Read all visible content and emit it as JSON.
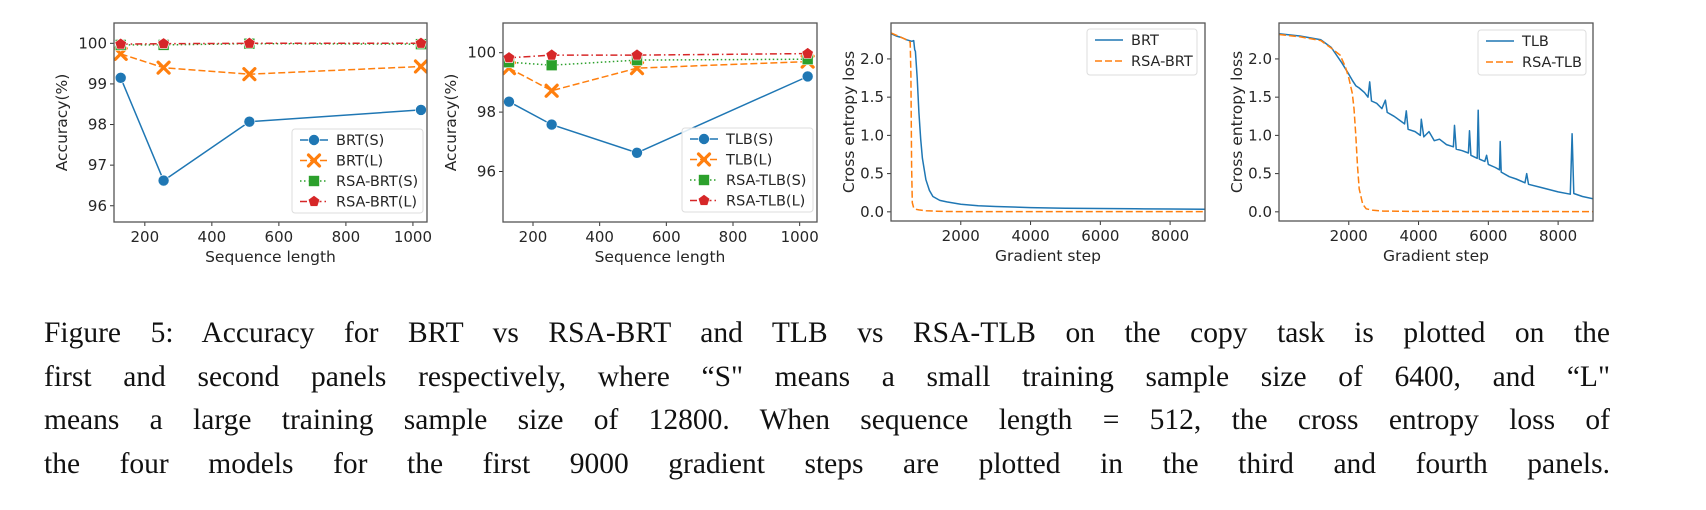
{
  "figure": {
    "caption_lines": [
      "Figure 5: Accuracy for BRT vs RSA-BRT and TLB vs RSA-TLB on the copy task is plotted on the",
      "first and second panels respectively, where “S\" means a small training sample size of 6400, and “L\"",
      "means a large training sample size of 12800. When sequence length = 512, the cross entropy loss of",
      "the four models for the first 9000 gradient steps are plotted in the third and fourth panels."
    ]
  },
  "colors": {
    "blue": "#1f77b4",
    "orange": "#ff7f0e",
    "green": "#2ca02c",
    "red": "#d62728"
  },
  "chart_data": [
    {
      "type": "line",
      "xlabel": "Sequence length",
      "ylabel": "Accuracy(%)",
      "x": [
        128,
        256,
        512,
        1024
      ],
      "xlim": [
        108,
        1042
      ],
      "ylim": [
        95.6,
        100.5
      ],
      "xticks": [
        200,
        400,
        600,
        800,
        1000
      ],
      "yticks": [
        96,
        97,
        98,
        99,
        100
      ],
      "grid": false,
      "legend": "lower-right",
      "series": [
        {
          "name": "BRT(S)",
          "color": "#1f77b4",
          "linestyle": "solid",
          "marker": "circle",
          "values": [
            99.15,
            96.62,
            98.07,
            98.36
          ]
        },
        {
          "name": "BRT(L)",
          "color": "#ff7f0e",
          "linestyle": "dashed",
          "marker": "x",
          "values": [
            99.74,
            99.4,
            99.24,
            99.43
          ]
        },
        {
          "name": "RSA-BRT(S)",
          "color": "#2ca02c",
          "linestyle": "dotted",
          "marker": "square",
          "values": [
            99.96,
            99.96,
            99.99,
            99.98
          ]
        },
        {
          "name": "RSA-BRT(L)",
          "color": "#d62728",
          "linestyle": "dashdot",
          "marker": "pentagon",
          "values": [
            99.98,
            99.99,
            100.0,
            100.0
          ]
        }
      ]
    },
    {
      "type": "line",
      "xlabel": "Sequence length",
      "ylabel": "Accuracy(%)",
      "x": [
        128,
        256,
        512,
        1024
      ],
      "xlim": [
        110,
        1052
      ],
      "ylim": [
        94.3,
        101.0
      ],
      "xticks": [
        200,
        400,
        600,
        800,
        1000
      ],
      "yticks": [
        96,
        98,
        100
      ],
      "grid": false,
      "legend": "lower-right",
      "series": [
        {
          "name": "TLB(S)",
          "color": "#1f77b4",
          "linestyle": "solid",
          "marker": "circle",
          "values": [
            98.35,
            97.58,
            96.63,
            99.2
          ]
        },
        {
          "name": "TLB(L)",
          "color": "#ff7f0e",
          "linestyle": "dashed",
          "marker": "x",
          "values": [
            99.48,
            98.72,
            99.48,
            99.7
          ]
        },
        {
          "name": "RSA-TLB(S)",
          "color": "#2ca02c",
          "linestyle": "dotted",
          "marker": "square",
          "values": [
            99.68,
            99.58,
            99.75,
            99.78
          ]
        },
        {
          "name": "RSA-TLB(L)",
          "color": "#d62728",
          "linestyle": "dashdot",
          "marker": "pentagon",
          "values": [
            99.83,
            99.92,
            99.92,
            99.97
          ]
        }
      ]
    },
    {
      "type": "line",
      "xlabel": "Gradient step",
      "ylabel": "Cross entropy loss",
      "xlim": [
        0,
        9000
      ],
      "ylim": [
        -0.12,
        2.47
      ],
      "xticks": [
        2000,
        4000,
        6000,
        8000
      ],
      "yticks": [
        0.0,
        0.5,
        1.0,
        1.5,
        2.0
      ],
      "grid": false,
      "legend": "upper-right",
      "series": [
        {
          "name": "BRT",
          "color": "#1f77b4",
          "linestyle": "solid",
          "x": [
            0,
            150,
            300,
            450,
            600,
            650,
            680,
            700,
            750,
            800,
            850,
            900,
            1000,
            1100,
            1200,
            1400,
            1600,
            2000,
            2500,
            3000,
            4000,
            5000,
            6000,
            7000,
            8000,
            9000
          ],
          "values": [
            2.33,
            2.3,
            2.28,
            2.25,
            2.23,
            2.24,
            2.12,
            2.1,
            1.75,
            1.3,
            0.95,
            0.7,
            0.42,
            0.28,
            0.2,
            0.15,
            0.13,
            0.1,
            0.08,
            0.07,
            0.055,
            0.048,
            0.043,
            0.04,
            0.037,
            0.035
          ]
        },
        {
          "name": "RSA-BRT",
          "color": "#ff7f0e",
          "linestyle": "dashed",
          "x": [
            0,
            200,
            400,
            550,
            570,
            590,
            610,
            650,
            700,
            800,
            1000,
            1300,
            1600,
            2000,
            9000
          ],
          "values": [
            2.34,
            2.3,
            2.26,
            2.22,
            1.8,
            0.6,
            0.12,
            0.05,
            0.035,
            0.025,
            0.015,
            0.008,
            0.004,
            0.003,
            0.003
          ]
        }
      ]
    },
    {
      "type": "line",
      "xlabel": "Gradient step",
      "ylabel": "Cross entropy loss",
      "xlim": [
        0,
        9000
      ],
      "ylim": [
        -0.12,
        2.47
      ],
      "xticks": [
        2000,
        4000,
        6000,
        8000
      ],
      "yticks": [
        0.0,
        0.5,
        1.0,
        1.5,
        2.0
      ],
      "grid": false,
      "legend": "upper-right",
      "series": [
        {
          "name": "TLB",
          "color": "#1f77b4",
          "linestyle": "solid",
          "x": [
            0,
            600,
            1200,
            1500,
            1800,
            2000,
            2100,
            2200,
            2300,
            2450,
            2550,
            2600,
            2650,
            2800,
            2950,
            3050,
            3100,
            3300,
            3450,
            3600,
            3650,
            3700,
            3900,
            4050,
            4080,
            4150,
            4300,
            4450,
            4600,
            4800,
            5000,
            5030,
            5080,
            5250,
            5430,
            5460,
            5500,
            5680,
            5710,
            5740,
            5900,
            5950,
            6000,
            6200,
            6320,
            6340,
            6370,
            6600,
            6800,
            7050,
            7100,
            7150,
            7500,
            8000,
            8350,
            8400,
            8450,
            8700,
            9000
          ],
          "values": [
            2.33,
            2.3,
            2.25,
            2.15,
            1.95,
            1.8,
            1.72,
            1.65,
            1.62,
            1.56,
            1.5,
            1.7,
            1.45,
            1.42,
            1.35,
            1.46,
            1.3,
            1.25,
            1.2,
            1.15,
            1.32,
            1.08,
            1.05,
            1.0,
            1.21,
            0.98,
            1.05,
            0.93,
            0.95,
            0.88,
            0.85,
            1.13,
            0.82,
            0.8,
            0.77,
            1.06,
            0.74,
            0.7,
            1.33,
            0.69,
            0.66,
            0.74,
            0.62,
            0.58,
            0.55,
            0.92,
            0.52,
            0.46,
            0.43,
            0.38,
            0.5,
            0.36,
            0.32,
            0.26,
            0.23,
            1.02,
            0.24,
            0.2,
            0.17
          ]
        },
        {
          "name": "RSA-TLB",
          "color": "#ff7f0e",
          "linestyle": "dashed",
          "x": [
            0,
            600,
            1200,
            1500,
            1750,
            1800,
            1900,
            2000,
            2100,
            2150,
            2200,
            2250,
            2300,
            2400,
            2500,
            2700,
            3000,
            4000,
            9000
          ],
          "values": [
            2.32,
            2.29,
            2.24,
            2.14,
            2.05,
            2.0,
            1.9,
            1.75,
            1.55,
            1.35,
            1.0,
            0.6,
            0.3,
            0.1,
            0.04,
            0.02,
            0.01,
            0.005,
            0.003
          ]
        }
      ]
    }
  ]
}
